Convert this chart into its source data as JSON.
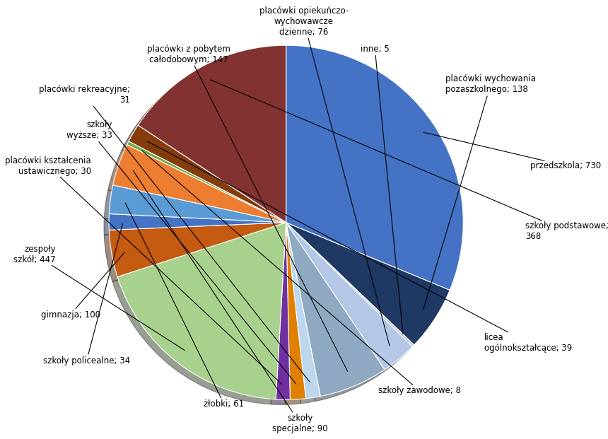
{
  "labels": [
    "przedszkola; 730",
    "placówki wychowania\npozaszkolnego; 138",
    "inne; 5",
    "placówki opiekuńczo-\nwychowawcze\ndzienne; 76",
    "placówki z pobytem\ncałodobowym; 147",
    "placówki rekreacyjne;\n31",
    "szkoły\nwyższe; 33",
    "placówki kształcenia\nustawicznego; 30",
    "zespoły\nszkół; 447",
    "gimnazja; 100",
    "szkoły policealne; 34",
    "żłobki; 61",
    "szkoły\nspecjalne; 90",
    "szkoły zawodowe; 8",
    "licea\nogólnokształcące; 39",
    "szkoły podstawowe;\n368"
  ],
  "values": [
    730,
    138,
    5,
    76,
    147,
    31,
    33,
    30,
    447,
    100,
    34,
    61,
    90,
    8,
    39,
    368
  ],
  "colors": [
    "#4472C4",
    "#1F3864",
    "#C9C0D3",
    "#B4C7E7",
    "#8EA9C1",
    "#BDD7EE",
    "#E08000",
    "#7030A0",
    "#A9D18E",
    "#C55A11",
    "#4472C4",
    "#5B9BD5",
    "#ED7D31",
    "#70AD47",
    "#843C0C",
    "#833232"
  ],
  "startangle": 90,
  "background_color": "#FFFFFF",
  "annotation_fontsize": 8.5
}
